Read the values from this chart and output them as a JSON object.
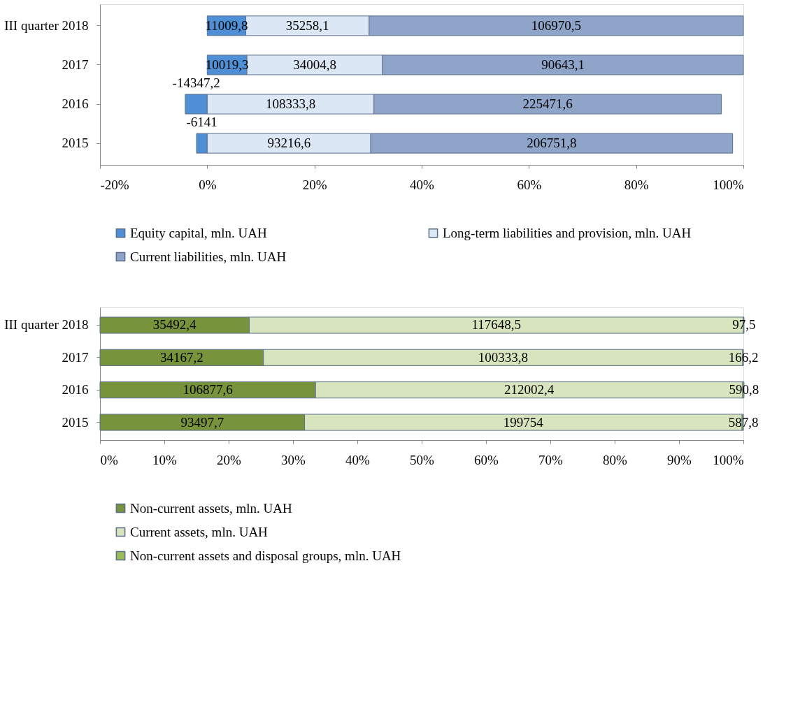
{
  "chart_data": [
    {
      "type": "bar",
      "orientation": "horizontal",
      "stacked": true,
      "legend": "bottom",
      "grid": false,
      "categories": [
        "III quarter 2018",
        "2017",
        "2016",
        "2015"
      ],
      "xlim": [
        -20,
        100
      ],
      "xticks": [
        {
          "value": -20,
          "label": "-20%"
        },
        {
          "value": 0,
          "label": "0%"
        },
        {
          "value": 20,
          "label": "20%"
        },
        {
          "value": 40,
          "label": "40%"
        },
        {
          "value": 60,
          "label": "60%"
        },
        {
          "value": 80,
          "label": "80%"
        },
        {
          "value": 100,
          "label": "100%"
        }
      ],
      "series": [
        {
          "name": "Equity capital, mln. UAH",
          "color": "#4f8fd6",
          "values": [
            7.2,
            7.4,
            -4.1,
            -2.0
          ]
        },
        {
          "name": "Long-term liabilities and provision, mln. UAH",
          "color": "#dbe7f5",
          "values": [
            23.0,
            25.3,
            31.1,
            30.5
          ]
        },
        {
          "name": "Current liabilities, mln. UAH",
          "color": "#8ea4c8",
          "values": [
            69.8,
            67.3,
            64.8,
            67.5
          ]
        }
      ],
      "annotations": [
        "11009,8",
        "35258,1",
        "106970,5",
        "10019,3",
        "34004,8",
        "90643,1",
        "-14347,2",
        "108333,8",
        "225471,6",
        "-6141",
        "93216,6",
        "206751,8"
      ]
    },
    {
      "type": "bar",
      "orientation": "horizontal",
      "stacked": true,
      "legend": "bottom",
      "grid": false,
      "categories": [
        "III quarter 2018",
        "2017",
        "2016",
        "2015"
      ],
      "xlim": [
        0,
        100
      ],
      "xticks": [
        {
          "value": 0,
          "label": "0%"
        },
        {
          "value": 10,
          "label": "10%"
        },
        {
          "value": 20,
          "label": "20%"
        },
        {
          "value": 30,
          "label": "30%"
        },
        {
          "value": 40,
          "label": "40%"
        },
        {
          "value": 50,
          "label": "50%"
        },
        {
          "value": 60,
          "label": "60%"
        },
        {
          "value": 70,
          "label": "70%"
        },
        {
          "value": 80,
          "label": "80%"
        },
        {
          "value": 90,
          "label": "90%"
        },
        {
          "value": 100,
          "label": "100%"
        }
      ],
      "series": [
        {
          "name": "Non-current assets, mln. UAH",
          "color": "#77933c",
          "values": [
            23.2,
            25.4,
            33.5,
            31.8
          ]
        },
        {
          "name": "Current assets, mln. UAH",
          "color": "#d7e4bd",
          "values": [
            76.8,
            74.5,
            66.4,
            68.0
          ]
        },
        {
          "name": "Non-current assets and disposal groups, mln. UAH",
          "color": "#9bbb59",
          "values": [
            0.1,
            0.1,
            0.2,
            0.2
          ]
        }
      ],
      "annotations": [
        "35492,4",
        "117648,5",
        "97,5",
        "34167,2",
        "100333,8",
        "166,2",
        "106877,6",
        "212002,4",
        "590,8",
        "93497,7",
        "199754",
        "587,8"
      ]
    }
  ]
}
